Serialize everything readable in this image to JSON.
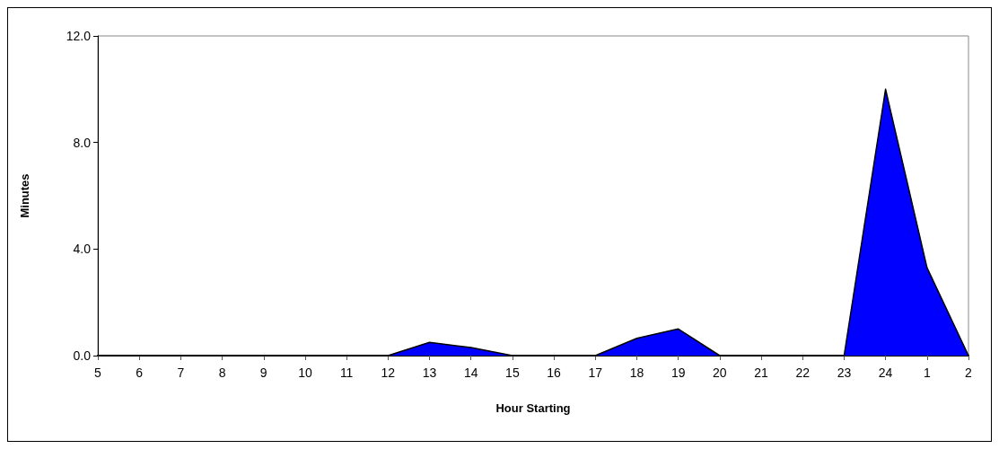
{
  "chart_data": {
    "type": "area",
    "xlabel": "Hour Starting",
    "ylabel": "Minutes",
    "categories": [
      "5",
      "6",
      "7",
      "8",
      "9",
      "10",
      "11",
      "12",
      "13",
      "14",
      "15",
      "16",
      "17",
      "18",
      "19",
      "20",
      "21",
      "22",
      "23",
      "24",
      "1",
      "2"
    ],
    "series": [
      {
        "color": "#0000ff",
        "values": [
          0,
          0,
          0,
          0,
          0,
          0,
          0,
          0,
          0.5,
          0.3,
          0,
          0,
          0,
          0.65,
          1.0,
          0,
          0,
          0,
          0,
          10.0,
          3.3,
          0
        ]
      }
    ],
    "ylim": [
      0,
      12
    ],
    "yticks": [
      {
        "value": 0,
        "label": "0.0"
      },
      {
        "value": 4,
        "label": "4.0"
      },
      {
        "value": 8,
        "label": "8.0"
      },
      {
        "value": 12,
        "label": "12.0"
      }
    ],
    "grid": false,
    "marker": "none"
  }
}
